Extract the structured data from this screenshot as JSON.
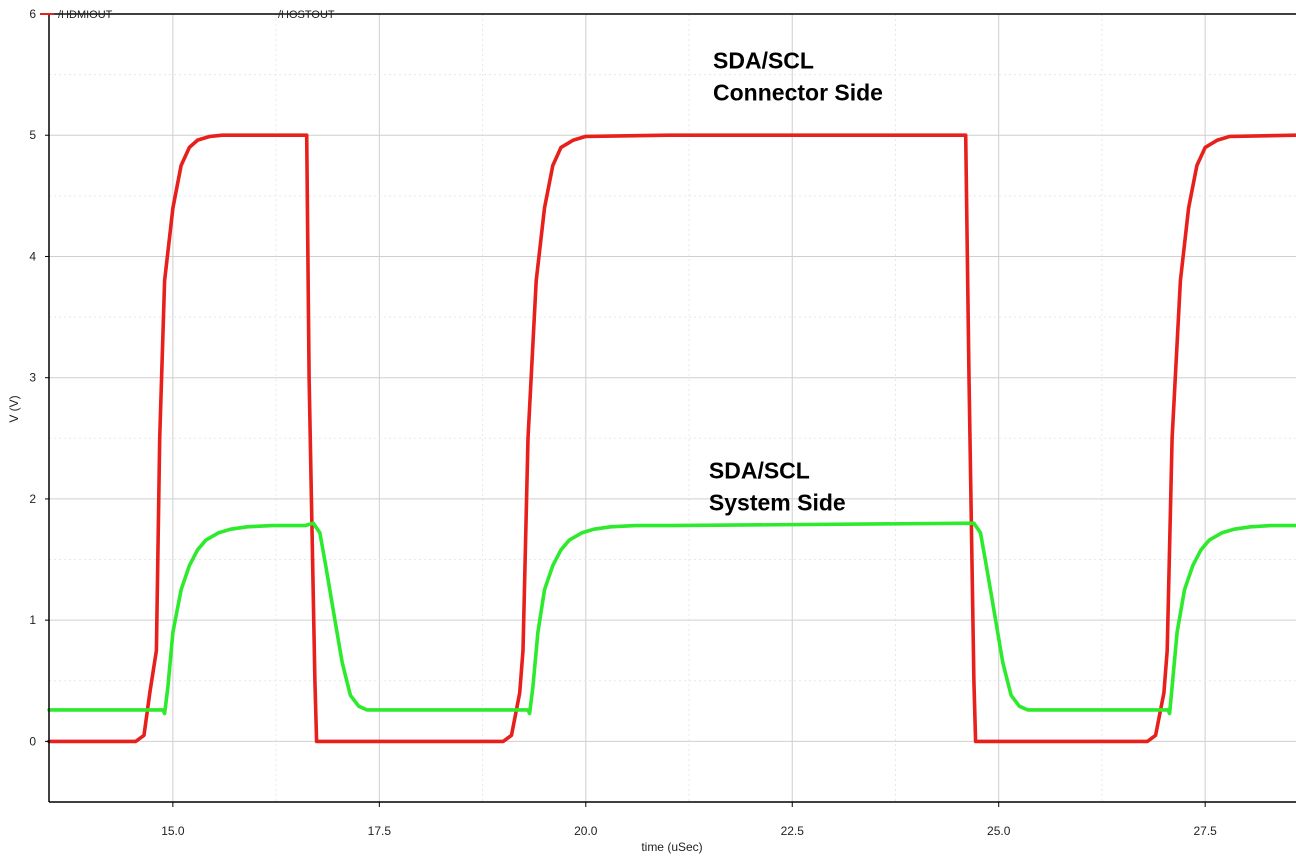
{
  "chart_data": {
    "type": "line",
    "title": "",
    "xlabel": "time (uSec)",
    "ylabel": "V (V)",
    "xlim": [
      13.5,
      28.6
    ],
    "ylim": [
      -0.5,
      6.0
    ],
    "x_ticks": [
      "15.0",
      "17.5",
      "20.0",
      "22.5",
      "25.0",
      "27.5"
    ],
    "y_ticks": [
      "0",
      "1",
      "2",
      "3",
      "4",
      "5",
      "6"
    ],
    "grid": true,
    "legend_position": "top-left",
    "series": [
      {
        "name": "/HDMIOUT",
        "color": "#e8201c",
        "x": [
          13.5,
          14.55,
          14.65,
          14.72,
          14.8,
          14.84,
          14.9,
          15.0,
          15.1,
          15.2,
          15.3,
          15.45,
          15.6,
          16.0,
          16.62,
          16.65,
          16.72,
          16.74,
          17.0,
          19.0,
          19.1,
          19.2,
          19.24,
          19.3,
          19.4,
          19.5,
          19.6,
          19.7,
          19.85,
          20.0,
          21.0,
          24.6,
          24.64,
          24.7,
          24.72,
          25.0,
          26.8,
          26.9,
          27.0,
          27.04,
          27.1,
          27.2,
          27.3,
          27.4,
          27.5,
          27.65,
          27.8,
          28.6
        ],
        "values": [
          0.0,
          0.0,
          0.05,
          0.4,
          0.75,
          2.5,
          3.8,
          4.4,
          4.75,
          4.9,
          4.96,
          4.99,
          5.0,
          5.0,
          5.0,
          3.0,
          0.5,
          0.0,
          0.0,
          0.0,
          0.05,
          0.4,
          0.75,
          2.5,
          3.8,
          4.4,
          4.75,
          4.9,
          4.96,
          4.99,
          5.0,
          5.0,
          3.0,
          0.5,
          0.0,
          0.0,
          0.0,
          0.05,
          0.4,
          0.75,
          2.5,
          3.8,
          4.4,
          4.75,
          4.9,
          4.96,
          4.99,
          5.0
        ]
      },
      {
        "name": "/HOSTOUT",
        "color": "#2dea2d",
        "x": [
          13.5,
          14.88,
          14.9,
          14.94,
          15.0,
          15.1,
          15.2,
          15.3,
          15.4,
          15.55,
          15.7,
          15.9,
          16.2,
          16.6,
          16.7,
          16.78,
          16.85,
          16.95,
          17.05,
          17.15,
          17.25,
          17.35,
          17.45,
          17.6,
          18.0,
          19.3,
          19.32,
          19.36,
          19.42,
          19.5,
          19.6,
          19.7,
          19.8,
          19.95,
          20.1,
          20.3,
          20.6,
          21.0,
          24.7,
          24.78,
          24.85,
          24.95,
          25.05,
          25.15,
          25.25,
          25.35,
          25.5,
          25.7,
          27.05,
          27.07,
          27.1,
          27.16,
          27.25,
          27.35,
          27.45,
          27.55,
          27.7,
          27.85,
          28.05,
          28.3,
          28.6
        ],
        "values": [
          0.26,
          0.26,
          0.23,
          0.45,
          0.9,
          1.25,
          1.45,
          1.58,
          1.66,
          1.72,
          1.75,
          1.77,
          1.78,
          1.78,
          1.8,
          1.72,
          1.45,
          1.05,
          0.65,
          0.38,
          0.29,
          0.26,
          0.26,
          0.26,
          0.26,
          0.26,
          0.23,
          0.45,
          0.9,
          1.25,
          1.45,
          1.58,
          1.66,
          1.72,
          1.75,
          1.77,
          1.78,
          1.78,
          1.8,
          1.72,
          1.45,
          1.05,
          0.65,
          0.38,
          0.29,
          0.26,
          0.26,
          0.26,
          0.26,
          0.23,
          0.45,
          0.9,
          1.25,
          1.45,
          1.58,
          1.66,
          1.72,
          1.75,
          1.77,
          1.78,
          1.78
        ]
      }
    ],
    "annotations": [
      {
        "lines": [
          "SDA/SCL",
          "Connector Side"
        ],
        "x": 22.8,
        "y": 5.55
      },
      {
        "lines": [
          "SDA/SCL",
          "System Side"
        ],
        "x": 22.75,
        "y": 2.17
      }
    ]
  }
}
